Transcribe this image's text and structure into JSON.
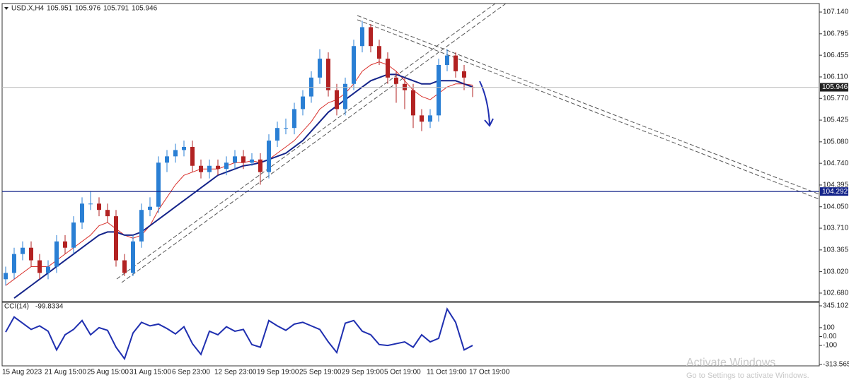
{
  "chart_data": [
    {
      "type": "candlestick",
      "title": "USD.X,H4",
      "categories": [
        "15 Aug 2023",
        null,
        null,
        null,
        null,
        "21 Aug 15:00",
        null,
        null,
        null,
        null,
        "25 Aug 15:00",
        null,
        null,
        null,
        null,
        "31 Aug 15:00",
        null,
        null,
        null,
        null,
        "6 Sep 23:00",
        null,
        null,
        null,
        null,
        "12 Sep 23:00",
        null,
        null,
        null,
        null,
        "19 Sep 19:00",
        null,
        null,
        null,
        null,
        "25 Sep 19:00",
        null,
        null,
        null,
        null,
        "29 Sep 19:00",
        null,
        null,
        null,
        null,
        "5 Oct 19:00",
        null,
        null,
        null,
        null,
        "11 Oct 19:00",
        null,
        null,
        null,
        null,
        "17 Oct 19:00"
      ],
      "open": [
        102.9,
        103.0,
        103.3,
        103.4,
        103.2,
        103.0,
        103.1,
        103.5,
        103.4,
        103.8,
        104.1,
        104.1,
        104.0,
        103.9,
        103.2,
        103.0,
        103.5,
        104.0,
        104.05,
        104.75,
        104.85,
        104.95,
        105.0,
        104.7,
        104.6,
        104.7,
        104.65,
        104.75,
        104.85,
        104.75,
        104.8,
        104.6,
        105.1,
        105.3,
        105.3,
        105.6,
        105.8,
        106.1,
        106.4,
        105.9,
        105.6,
        106.0,
        106.6,
        106.9,
        106.6,
        106.4,
        106.1,
        106.0,
        105.9,
        105.5,
        105.4,
        105.5,
        106.3,
        106.45,
        106.2,
        105.951
      ],
      "high": [
        103.1,
        103.4,
        103.5,
        103.5,
        103.3,
        103.2,
        103.6,
        103.6,
        103.9,
        104.2,
        104.3,
        104.2,
        104.1,
        104.0,
        103.3,
        103.6,
        104.1,
        104.2,
        104.85,
        104.95,
        105.05,
        105.1,
        105.1,
        104.8,
        104.8,
        104.8,
        104.85,
        104.95,
        104.95,
        104.9,
        104.9,
        105.2,
        105.4,
        105.45,
        105.7,
        105.9,
        106.2,
        106.55,
        106.5,
        106.0,
        106.1,
        106.7,
        107.0,
        106.95,
        106.7,
        106.5,
        106.2,
        106.1,
        106.0,
        105.6,
        105.6,
        106.4,
        106.55,
        106.5,
        106.3,
        105.976
      ],
      "low": [
        102.8,
        102.9,
        103.2,
        103.1,
        102.9,
        102.9,
        103.0,
        103.3,
        103.3,
        103.7,
        104.0,
        103.9,
        103.8,
        103.1,
        102.95,
        102.95,
        103.4,
        103.9,
        103.95,
        104.6,
        104.75,
        104.85,
        104.6,
        104.5,
        104.5,
        104.55,
        104.55,
        104.65,
        104.65,
        104.7,
        104.4,
        104.5,
        105.0,
        105.2,
        105.2,
        105.5,
        105.7,
        106.0,
        105.8,
        105.5,
        105.5,
        105.9,
        106.5,
        106.5,
        106.3,
        106.0,
        105.7,
        105.6,
        105.3,
        105.25,
        105.3,
        105.4,
        106.2,
        106.1,
        105.9,
        105.791
      ],
      "close": [
        103.0,
        103.3,
        103.4,
        103.2,
        103.0,
        103.1,
        103.5,
        103.4,
        103.8,
        104.1,
        104.1,
        104.0,
        103.9,
        103.2,
        103.0,
        103.5,
        104.0,
        104.05,
        104.75,
        104.85,
        104.95,
        105.0,
        104.7,
        104.6,
        104.7,
        104.65,
        104.75,
        104.85,
        104.75,
        104.8,
        104.6,
        105.1,
        105.3,
        105.3,
        105.6,
        105.8,
        106.1,
        106.4,
        105.9,
        105.6,
        106.0,
        106.6,
        106.9,
        106.6,
        106.4,
        106.1,
        106.0,
        105.9,
        105.5,
        105.4,
        105.5,
        106.3,
        106.45,
        106.2,
        106.1,
        105.946
      ],
      "up_color": "#2a7fd4",
      "down_color": "#b22222",
      "series": [
        {
          "color": "#d9302b",
          "values": [
            102.8,
            102.9,
            103.0,
            103.1,
            103.1,
            103.1,
            103.2,
            103.3,
            103.4,
            103.5,
            103.6,
            103.75,
            103.8,
            103.7,
            103.6,
            103.55,
            103.6,
            103.75,
            104.0,
            104.2,
            104.4,
            104.55,
            104.6,
            104.65,
            104.65,
            104.65,
            104.7,
            104.75,
            104.75,
            104.78,
            104.75,
            104.8,
            104.9,
            105.0,
            105.1,
            105.25,
            105.4,
            105.6,
            105.7,
            105.75,
            105.85,
            106.0,
            106.2,
            106.3,
            106.35,
            106.3,
            106.2,
            106.05,
            105.9,
            105.8,
            105.75,
            105.85,
            105.95,
            106.0,
            106.0,
            105.98
          ]
        },
        {
          "color": "#14248a",
          "values": [
            null,
            102.6,
            102.7,
            102.8,
            102.9,
            103.0,
            103.1,
            103.2,
            103.3,
            103.4,
            103.5,
            103.6,
            103.65,
            103.65,
            103.6,
            103.6,
            103.65,
            103.75,
            103.85,
            103.95,
            104.05,
            104.15,
            104.25,
            104.35,
            104.45,
            104.55,
            104.6,
            104.65,
            104.7,
            104.72,
            104.75,
            104.8,
            104.85,
            104.9,
            105.0,
            105.1,
            105.25,
            105.4,
            105.55,
            105.65,
            105.75,
            105.85,
            105.95,
            106.05,
            106.1,
            106.15,
            106.15,
            106.1,
            106.05,
            106.0,
            106.0,
            106.05,
            106.05,
            106.05,
            106.0,
            105.95
          ]
        }
      ],
      "hline": 104.292,
      "hline_color": "#14248a",
      "ylim": [
        102.545,
        107.275
      ],
      "yticks": [
        {
          "value": 107.14,
          "label": "107.140"
        },
        106.795,
        106.455,
        {
          "value": 106.11,
          "label": "106.110"
        },
        {
          "value": 105.77,
          "label": "105.770"
        },
        105.425,
        {
          "value": 105.08,
          "label": "105.080"
        },
        {
          "value": 104.74,
          "label": "104.740"
        },
        104.395,
        {
          "value": 104.05,
          "label": "104.050"
        },
        {
          "value": 103.71,
          "label": "103.710"
        },
        103.365,
        {
          "value": 103.02,
          "label": "103.020"
        },
        {
          "value": 102.68,
          "label": "102.680"
        }
      ]
    },
    {
      "type": "line",
      "title": "CCI(14)",
      "color": "#1f2fb0",
      "values": [
        50,
        220,
        150,
        80,
        120,
        60,
        -150,
        20,
        80,
        180,
        20,
        100,
        70,
        -120,
        -250,
        40,
        160,
        120,
        140,
        90,
        30,
        110,
        -80,
        -200,
        60,
        20,
        110,
        60,
        80,
        -90,
        -120,
        180,
        120,
        70,
        140,
        160,
        120,
        80,
        -60,
        -180,
        150,
        180,
        60,
        20,
        -90,
        -100,
        -80,
        -60,
        -120,
        20,
        -60,
        -20,
        310,
        160,
        -150,
        -99.8334
      ],
      "ylim": [
        -313.5658,
        345.102
      ],
      "yticks": [
        345.102,
        100,
        {
          "value": 0,
          "label": "0.00"
        },
        -100,
        -313.5658
      ]
    }
  ],
  "watermark": {
    "title": "Activate Windows",
    "subtitle": "Go to Settings to activate Windows."
  }
}
